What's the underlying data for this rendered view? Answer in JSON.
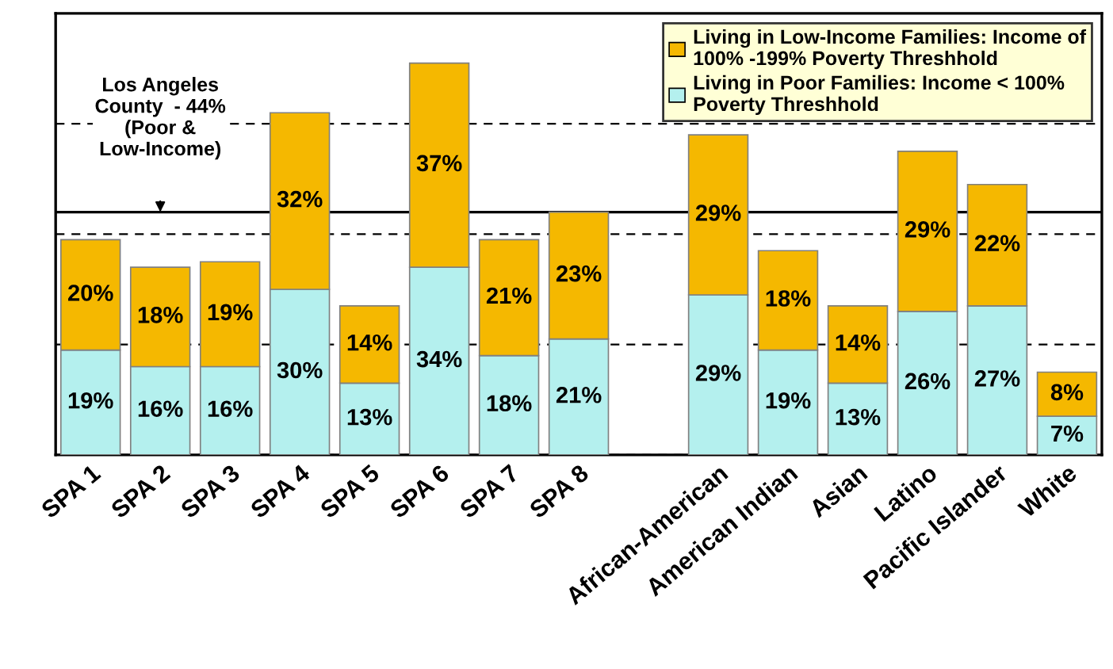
{
  "chart_data": {
    "type": "bar",
    "stacked": true,
    "categories": [
      "SPA 1",
      "SPA 2",
      "SPA 3",
      "SPA 4",
      "SPA 5",
      "SPA 6",
      "SPA 7",
      "SPA 8",
      null,
      "African-American",
      "American Indian",
      "Asian",
      "Latino",
      "Pacific Islander",
      "White"
    ],
    "series": [
      {
        "name": "Living in Poor Families: Income < 100% Poverty Threshhold",
        "color": "#b4f0ee",
        "values": [
          19,
          16,
          16,
          30,
          13,
          34,
          18,
          21,
          null,
          29,
          19,
          13,
          26,
          27,
          7
        ],
        "value_labels": [
          "19%",
          "16%",
          "16%",
          "30%",
          "13%",
          "34%",
          "18%",
          "21%",
          null,
          "29%",
          "19%",
          "13%",
          "26%",
          "27%",
          "7%"
        ]
      },
      {
        "name": "Living in Low-Income Families: Income of 100% -199% Poverty Threshhold",
        "color": "#f5b800",
        "values": [
          20,
          18,
          19,
          32,
          14,
          37,
          21,
          23,
          null,
          29,
          18,
          14,
          29,
          22,
          8
        ],
        "value_labels": [
          "20%",
          "18%",
          "19%",
          "32%",
          "14%",
          "37%",
          "21%",
          "23%",
          null,
          "29%",
          "18%",
          "14%",
          "29%",
          "22%",
          "8%"
        ]
      }
    ],
    "tick_labels": "x",
    "grid": "y",
    "legend": "top right",
    "ref_lines": [
      {
        "axis": "y",
        "value": 44,
        "label": "Los Angeles County  - 44% (Poor & Low-Income)",
        "color": "#000000",
        "line_style": "solid"
      }
    ]
  }
}
